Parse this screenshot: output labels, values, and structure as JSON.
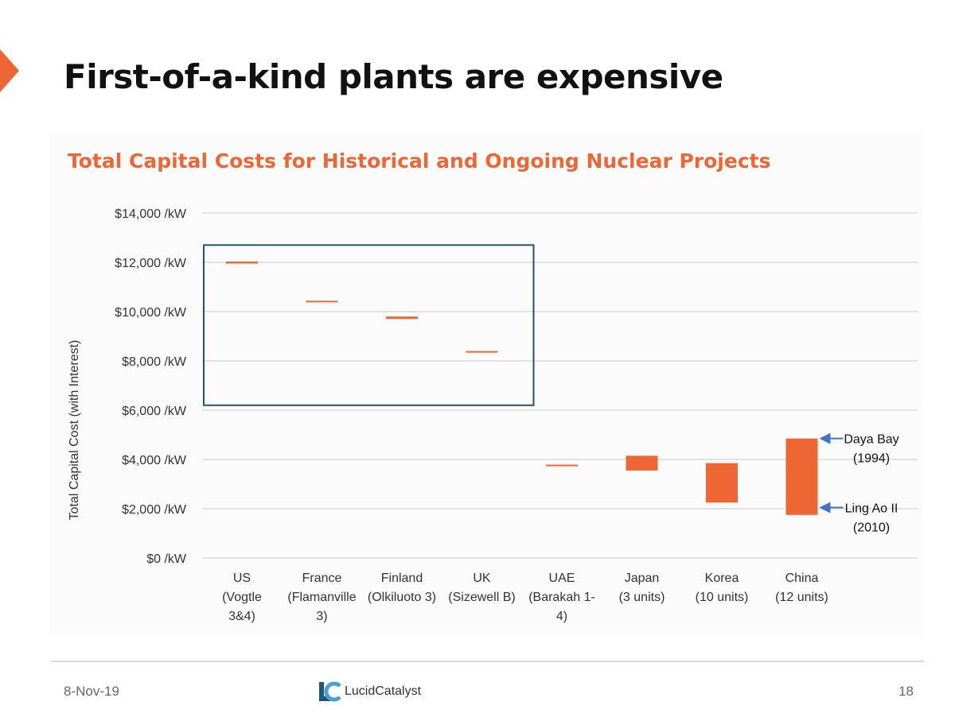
{
  "slide": {
    "title": "First-of-a-kind plants are expensive",
    "date": "8-Nov-19",
    "page_number": "18",
    "logo_text": "LucidCatalyst"
  },
  "colors": {
    "accent": "#ee6633",
    "box": "#1f5673",
    "arrow": "#4472c4",
    "grid": "#d9d9d9"
  },
  "chart_data": {
    "type": "bar",
    "subtype": "floating-range",
    "title": "Total Capital Costs for Historical and Ongoing Nuclear Projects",
    "ylabel": "Total Capital Cost  (with Interest)",
    "ylim": [
      0,
      14000
    ],
    "yticks": [
      0,
      2000,
      4000,
      6000,
      8000,
      10000,
      12000,
      14000
    ],
    "ytick_labels": [
      "$0 /kW",
      "$2,000 /kW",
      "$4,000 /kW",
      "$6,000 /kW",
      "$8,000 /kW",
      "$10,000 /kW",
      "$12,000 /kW",
      "$14,000 /kW"
    ],
    "grid": true,
    "categories": [
      [
        "US",
        "(Vogtle",
        "3&4)"
      ],
      [
        "France",
        "(Flamanville",
        "3)"
      ],
      [
        "Finland",
        "(Olkiluoto 3)"
      ],
      [
        "UK",
        "(Sizewell B)"
      ],
      [
        "UAE",
        "(Barakah 1-",
        "4)"
      ],
      [
        "Japan",
        "(3 units)"
      ],
      [
        "Korea",
        "(10 units)"
      ],
      [
        "China",
        "(12 units)"
      ]
    ],
    "ranges": [
      [
        11950,
        12030
      ],
      [
        10380,
        10440
      ],
      [
        9700,
        9800
      ],
      [
        8340,
        8400
      ],
      [
        3730,
        3790
      ],
      [
        3550,
        4150
      ],
      [
        2250,
        3850
      ],
      [
        1750,
        4850
      ]
    ],
    "highlight_box": {
      "from_category": 0,
      "to_category": 3,
      "ymin": 6200,
      "ymax": 12700
    },
    "annotations": [
      {
        "lines": [
          "Daya Bay",
          "(1994)"
        ],
        "value": 4850,
        "category": 7
      },
      {
        "lines": [
          "Ling Ao II",
          "(2010)"
        ],
        "value": 2050,
        "category": 7
      }
    ]
  }
}
